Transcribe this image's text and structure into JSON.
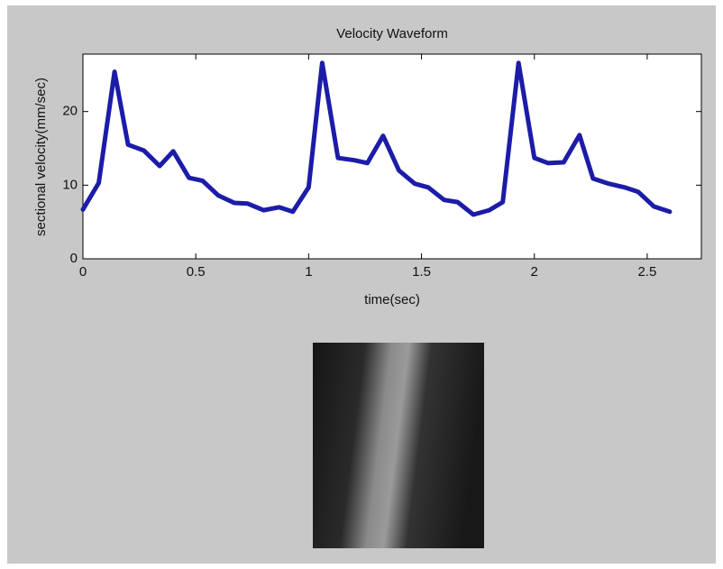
{
  "chart_data": {
    "type": "line",
    "title": "Velocity Waveform",
    "xlabel": "time(sec)",
    "ylabel": "sectional velocity(mm/sec)",
    "x": [
      0,
      0.07,
      0.14,
      0.2,
      0.27,
      0.34,
      0.4,
      0.47,
      0.53,
      0.6,
      0.67,
      0.73,
      0.8,
      0.87,
      0.93,
      1.0,
      1.06,
      1.13,
      1.2,
      1.26,
      1.33,
      1.4,
      1.47,
      1.53,
      1.6,
      1.66,
      1.73,
      1.8,
      1.86,
      1.93,
      2.0,
      2.06,
      2.13,
      2.2,
      2.26,
      2.33,
      2.4,
      2.46,
      2.53,
      2.6
    ],
    "series": [
      {
        "color": "#1c1ca8",
        "values": [
          6.7,
          10.3,
          25.4,
          15.5,
          14.7,
          12.6,
          14.6,
          11,
          10.6,
          8.6,
          7.6,
          7.5,
          6.6,
          7,
          6.4,
          9.7,
          26.6,
          13.7,
          13.4,
          13,
          16.7,
          12,
          10.2,
          9.7,
          8,
          7.7,
          6,
          6.6,
          7.7,
          26.6,
          13.7,
          13,
          13.1,
          16.8,
          10.9,
          10.2,
          9.7,
          9.1,
          7.1,
          6.4
        ]
      }
    ],
    "xlim": [
      0,
      2.74
    ],
    "xticks": [
      0,
      0.5,
      1,
      1.5,
      2,
      2.5
    ],
    "ylim": [
      0,
      27.8
    ],
    "yticks": [
      0,
      10,
      20
    ]
  }
}
